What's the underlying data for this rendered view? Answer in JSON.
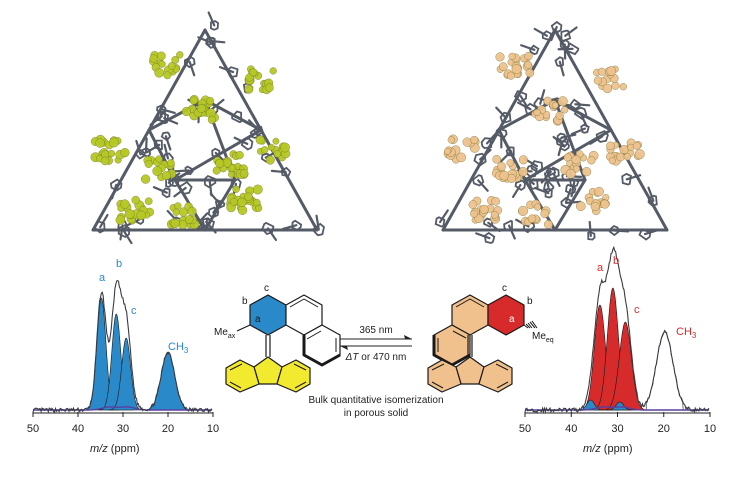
{
  "colors": {
    "framework": "#555b66",
    "guest_left": "#b5c825",
    "guest_right": "#edc28d",
    "blue": "#2a89c8",
    "red": "#d72a2a",
    "yellow": "#f2ea2e",
    "beige": "#f0c18c",
    "trace": "#3a3a44",
    "baseline": "#5a3ea0"
  },
  "left_spectrum": {
    "peak_labels": [
      "a",
      "b",
      "c",
      "CH3"
    ],
    "x_ticks": [
      "50",
      "40",
      "30",
      "20",
      "10"
    ],
    "xlabel_italic": "m/z",
    "xlabel_rest": " (ppm)"
  },
  "right_spectrum": {
    "peak_labels": [
      "a",
      "b",
      "c",
      "CH3"
    ],
    "x_ticks": [
      "50",
      "40",
      "30",
      "20",
      "10"
    ],
    "xlabel_italic": "m/z",
    "xlabel_rest": " (ppm)"
  },
  "left_molecule": {
    "atom_labels": [
      "b",
      "c",
      "a"
    ],
    "methyl_label": "Me",
    "methyl_sub": "ax"
  },
  "right_molecule": {
    "atom_labels": [
      "c",
      "b",
      "a"
    ],
    "methyl_label": "Me",
    "methyl_sub": "eq"
  },
  "arrow": {
    "forward": "365 nm",
    "reverse_italic": "ΔT",
    "reverse_rest": " or 470 nm"
  },
  "caption": {
    "line1": "Bulk quantitative isomerization",
    "line2": "in porous solid"
  }
}
